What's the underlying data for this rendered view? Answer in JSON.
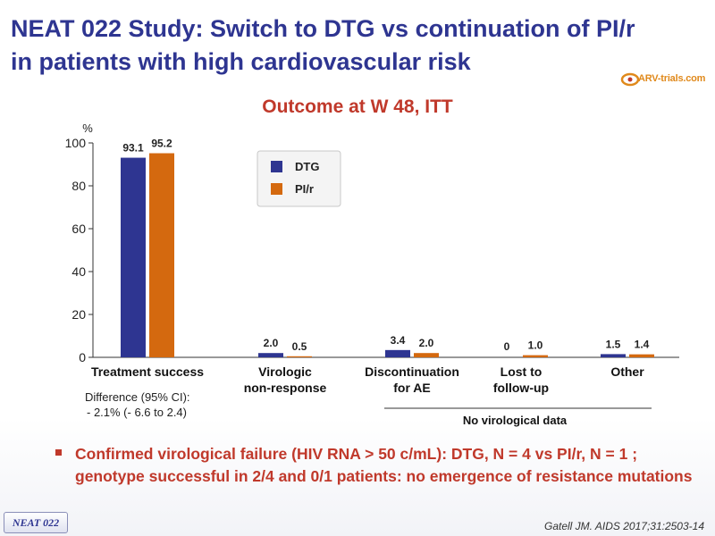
{
  "slide": {
    "title": "NEAT 022 Study: Switch to DTG vs continuation of PI/r in patients with high cardiovascular risk",
    "logo_text": "ARV-trials.com",
    "subtitle": "Outcome at W 48, ITT",
    "difference_line1": "Difference (95% CI):",
    "difference_line2": "- 2.1% (- 6.6 to 2.4)",
    "bullet": "Confirmed virological failure (HIV RNA > 50 c/mL): DTG, N = 4 vs PI/r, N = 1 ; genotype successful in 2/4 and 0/1 patients: no emergence of resistance mutations",
    "badge": "NEAT 022",
    "citation": "Gatell JM. AIDS 2017;31:2503-14"
  },
  "chart_data": {
    "type": "bar",
    "title": "Outcome at W 48, ITT",
    "ylabel": "%",
    "ylim": [
      0,
      100
    ],
    "yticks": [
      0,
      20,
      40,
      60,
      80,
      100
    ],
    "categories": [
      [
        "Treatment success"
      ],
      [
        "Virologic",
        "non-response"
      ],
      [
        "Discontinuation",
        "for AE"
      ],
      [
        "Lost to",
        "follow-up"
      ],
      [
        "Other"
      ]
    ],
    "series": [
      {
        "name": "DTG",
        "color": "#2e3591",
        "values": [
          93.1,
          2.0,
          3.4,
          0,
          1.5
        ],
        "labels": [
          "93.1",
          "2.0",
          "3.4",
          "0",
          "1.5"
        ]
      },
      {
        "name": "PI/r",
        "color": "#d4690f",
        "values": [
          95.2,
          0.5,
          2.0,
          1.0,
          1.4
        ],
        "labels": [
          "95.2",
          "0.5",
          "2.0",
          "1.0",
          "1.4"
        ]
      }
    ],
    "legend": "top-center",
    "group_annotation": "No virological data"
  }
}
